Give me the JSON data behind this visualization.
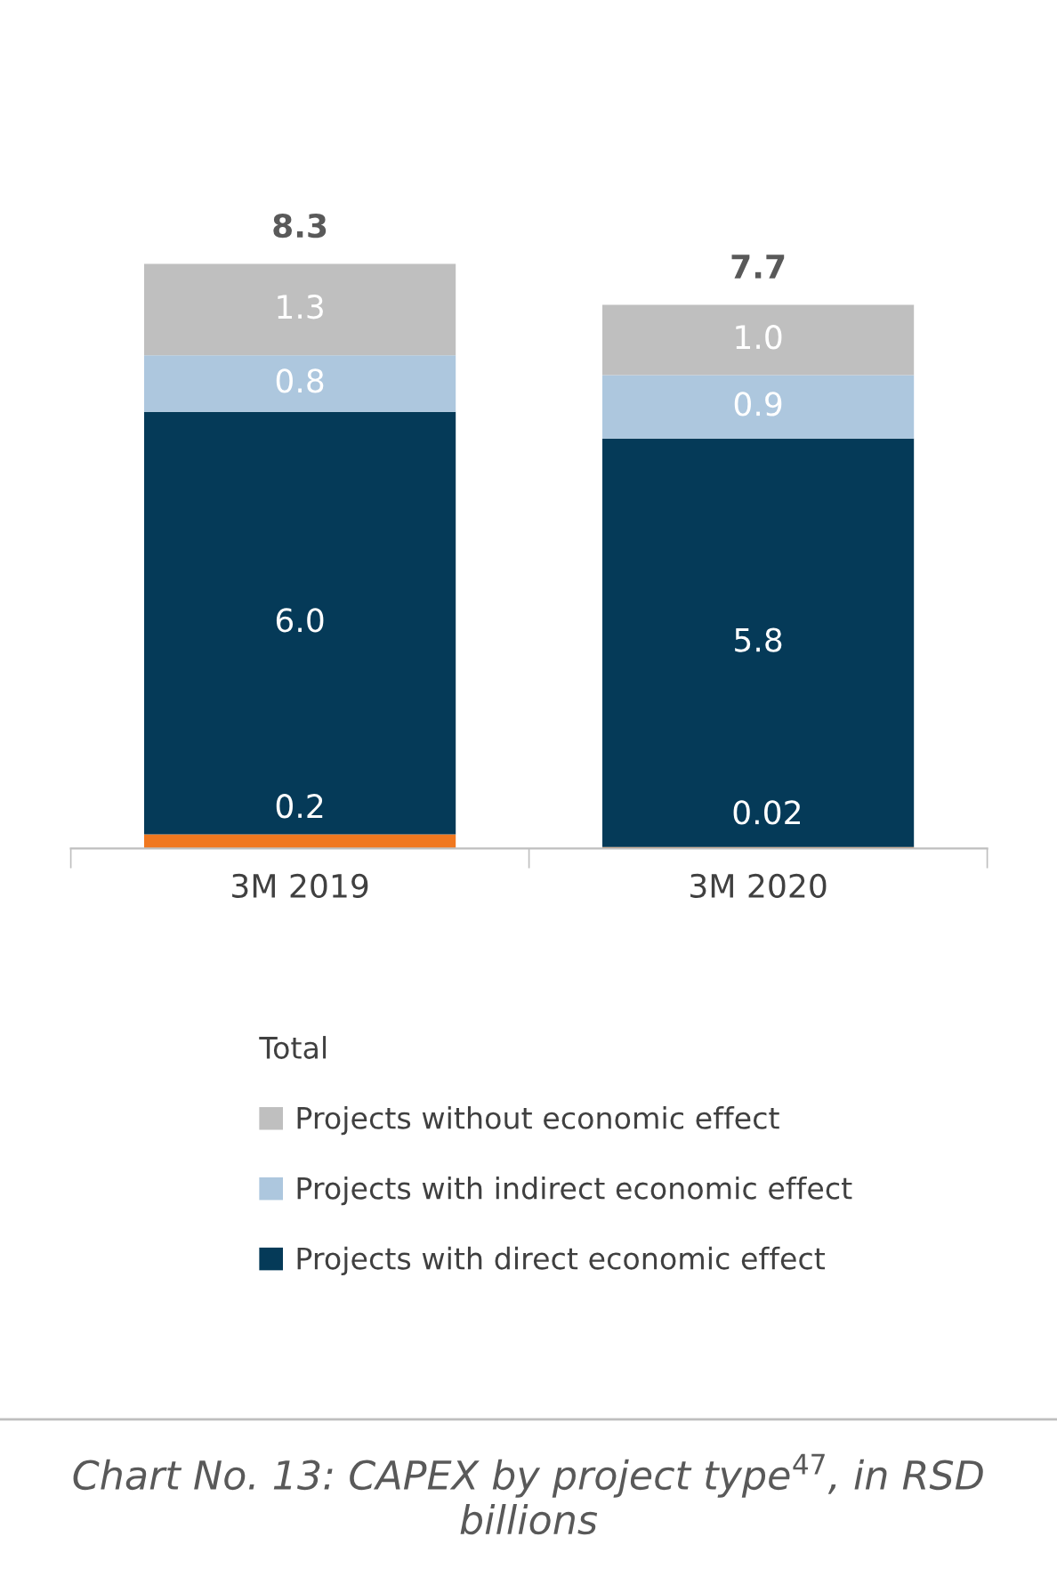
{
  "chart_data": {
    "type": "bar",
    "stacked": true,
    "legend": "bottom",
    "grid": false,
    "title": "Chart No. 13: CAPEX by project type$^{47}$, in RSD billions",
    "categories": [
      "3M 2019",
      "3M 2020"
    ],
    "legend_title": "Total",
    "totals": [
      "8.3",
      "7.7"
    ],
    "series": [
      {
        "color": "#f07820",
        "values": [
          0.2,
          0.02
        ],
        "value_labels": [
          "0.2",
          "0.02"
        ]
      },
      {
        "name": "Projects with direct economic effect",
        "color": "#053a58",
        "values": [
          6.0,
          5.8
        ],
        "value_labels": [
          "6.0",
          "5.8"
        ]
      },
      {
        "name": "Projects with indirect economic effect",
        "color": "#adc7de",
        "values": [
          0.8,
          0.9
        ],
        "value_labels": [
          "0.8",
          "0.9"
        ]
      },
      {
        "name": "Projects without economic effect",
        "color": "#bfbfbf",
        "values": [
          1.3,
          1.0
        ],
        "value_labels": [
          "1.3",
          "1.0"
        ]
      }
    ]
  }
}
